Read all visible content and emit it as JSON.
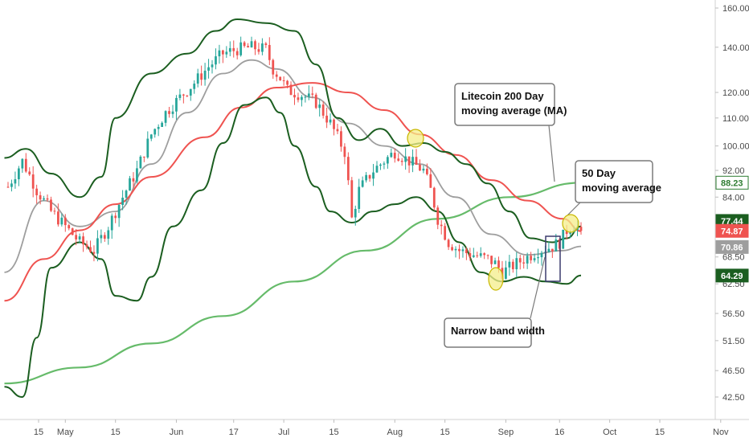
{
  "chart_data": {
    "type": "candlestick",
    "x_ticks": [
      {
        "label": "15",
        "t": 0
      },
      {
        "label": "May",
        "t": 16
      },
      {
        "label": "15",
        "t": 30
      },
      {
        "label": "Jun",
        "t": 47
      },
      {
        "label": "17",
        "t": 63
      },
      {
        "label": "Jul",
        "t": 77
      },
      {
        "label": "15",
        "t": 91
      },
      {
        "label": "Aug",
        "t": 108
      },
      {
        "label": "15",
        "t": 122
      },
      {
        "label": "Sep",
        "t": 139
      },
      {
        "label": "16",
        "t": 154
      },
      {
        "label": "Oct",
        "t": 168
      },
      {
        "label": "15",
        "t": 182
      },
      {
        "label": "Nov",
        "t": 199
      }
    ],
    "y_ticks": [
      "160.00",
      "140.00",
      "120.00",
      "110.00",
      "100.00",
      "92.00",
      "84.00",
      "77.44",
      "74.87",
      "70.86",
      "68.50",
      "64.29",
      "62.50",
      "56.50",
      "51.50",
      "46.50",
      "42.50"
    ],
    "ylim": [
      40,
      162
    ],
    "y_scale": "log",
    "last_t": 160,
    "price_tags": [
      {
        "label": "88.23",
        "value": 88.23,
        "bg": "#ffffff",
        "fg": "#2e7d32",
        "border": "#2e7d32"
      },
      {
        "label": "77.44",
        "value": 77.44,
        "bg": "#1b5e20",
        "fg": "#ffffff",
        "border": "#1b5e20"
      },
      {
        "label": "74.87",
        "value": 74.87,
        "bg": "#ef5350",
        "fg": "#ffffff",
        "border": "#ef5350"
      },
      {
        "label": "70.86",
        "value": 70.86,
        "bg": "#9e9e9e",
        "fg": "#ffffff",
        "border": "#9e9e9e"
      },
      {
        "label": "64.29",
        "value": 64.29,
        "bg": "#1b5e20",
        "fg": "#ffffff",
        "border": "#1b5e20"
      }
    ],
    "annotations": {
      "ma200": [
        "Litecoin 200 Day",
        "moving average (MA)"
      ],
      "ma50": [
        "50 Day",
        "moving average"
      ],
      "band": [
        "Narrow band width"
      ]
    },
    "colors": {
      "up": "#26a69a",
      "down": "#ef5350",
      "ma200": "#66bb6a",
      "ma50": "#ef5350",
      "mid": "#9e9e9e",
      "bands": "#1b5e20",
      "highlight": "#f4ee8a"
    }
  }
}
